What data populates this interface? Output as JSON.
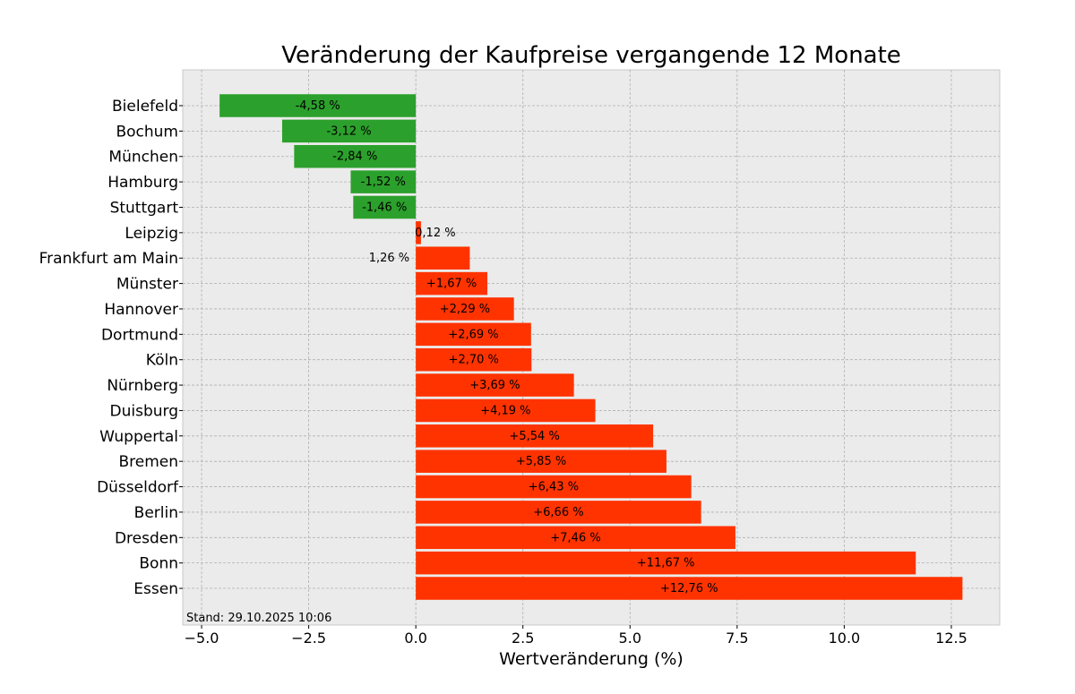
{
  "chart_data": {
    "type": "bar",
    "orientation": "horizontal",
    "title": "Veränderung der Kaufpreise vergangende 12 Monate",
    "xlabel": "Wertveränderung (%)",
    "ylabel": "",
    "xlim": [
      -5.44,
      13.63
    ],
    "xticks": [
      -5.0,
      -2.5,
      0.0,
      2.5,
      5.0,
      7.5,
      10.0,
      12.5
    ],
    "xtick_labels": [
      "−5.0",
      "−2.5",
      "0.0",
      "2.5",
      "5.0",
      "7.5",
      "10.0",
      "12.5"
    ],
    "grid": true,
    "annotation": "Stand: 29.10.2025 10:06",
    "colors": {
      "negative": "#2ca02c",
      "positive": "#ff3300",
      "background": "#ebebeb",
      "grid": "#b0b0b0"
    },
    "categories": [
      "Bielefeld",
      "Bochum",
      "München",
      "Hamburg",
      "Stuttgart",
      "Leipzig",
      "Frankfurt am Main",
      "Münster",
      "Hannover",
      "Dortmund",
      "Köln",
      "Nürnberg",
      "Duisburg",
      "Wuppertal",
      "Bremen",
      "Düsseldorf",
      "Berlin",
      "Dresden",
      "Bonn",
      "Essen"
    ],
    "values": [
      -4.58,
      -3.12,
      -2.84,
      -1.52,
      -1.46,
      0.12,
      1.26,
      1.67,
      2.29,
      2.69,
      2.7,
      3.69,
      4.19,
      5.54,
      5.85,
      6.43,
      6.66,
      7.46,
      11.67,
      12.76
    ],
    "data_labels": [
      "-4,58 %",
      "-3,12 %",
      "-2,84 %",
      "-1,52 %",
      "-1,46 %",
      "0,12 %",
      "1,26 %",
      "+1,67 %",
      "+2,29 %",
      "+2,69 %",
      "+2,70 %",
      "+3,69 %",
      "+4,19 %",
      "+5,54 %",
      "+5,85 %",
      "+6,43 %",
      "+6,66 %",
      "+7,46 %",
      "+11,67 %",
      "+12,76 %"
    ]
  }
}
